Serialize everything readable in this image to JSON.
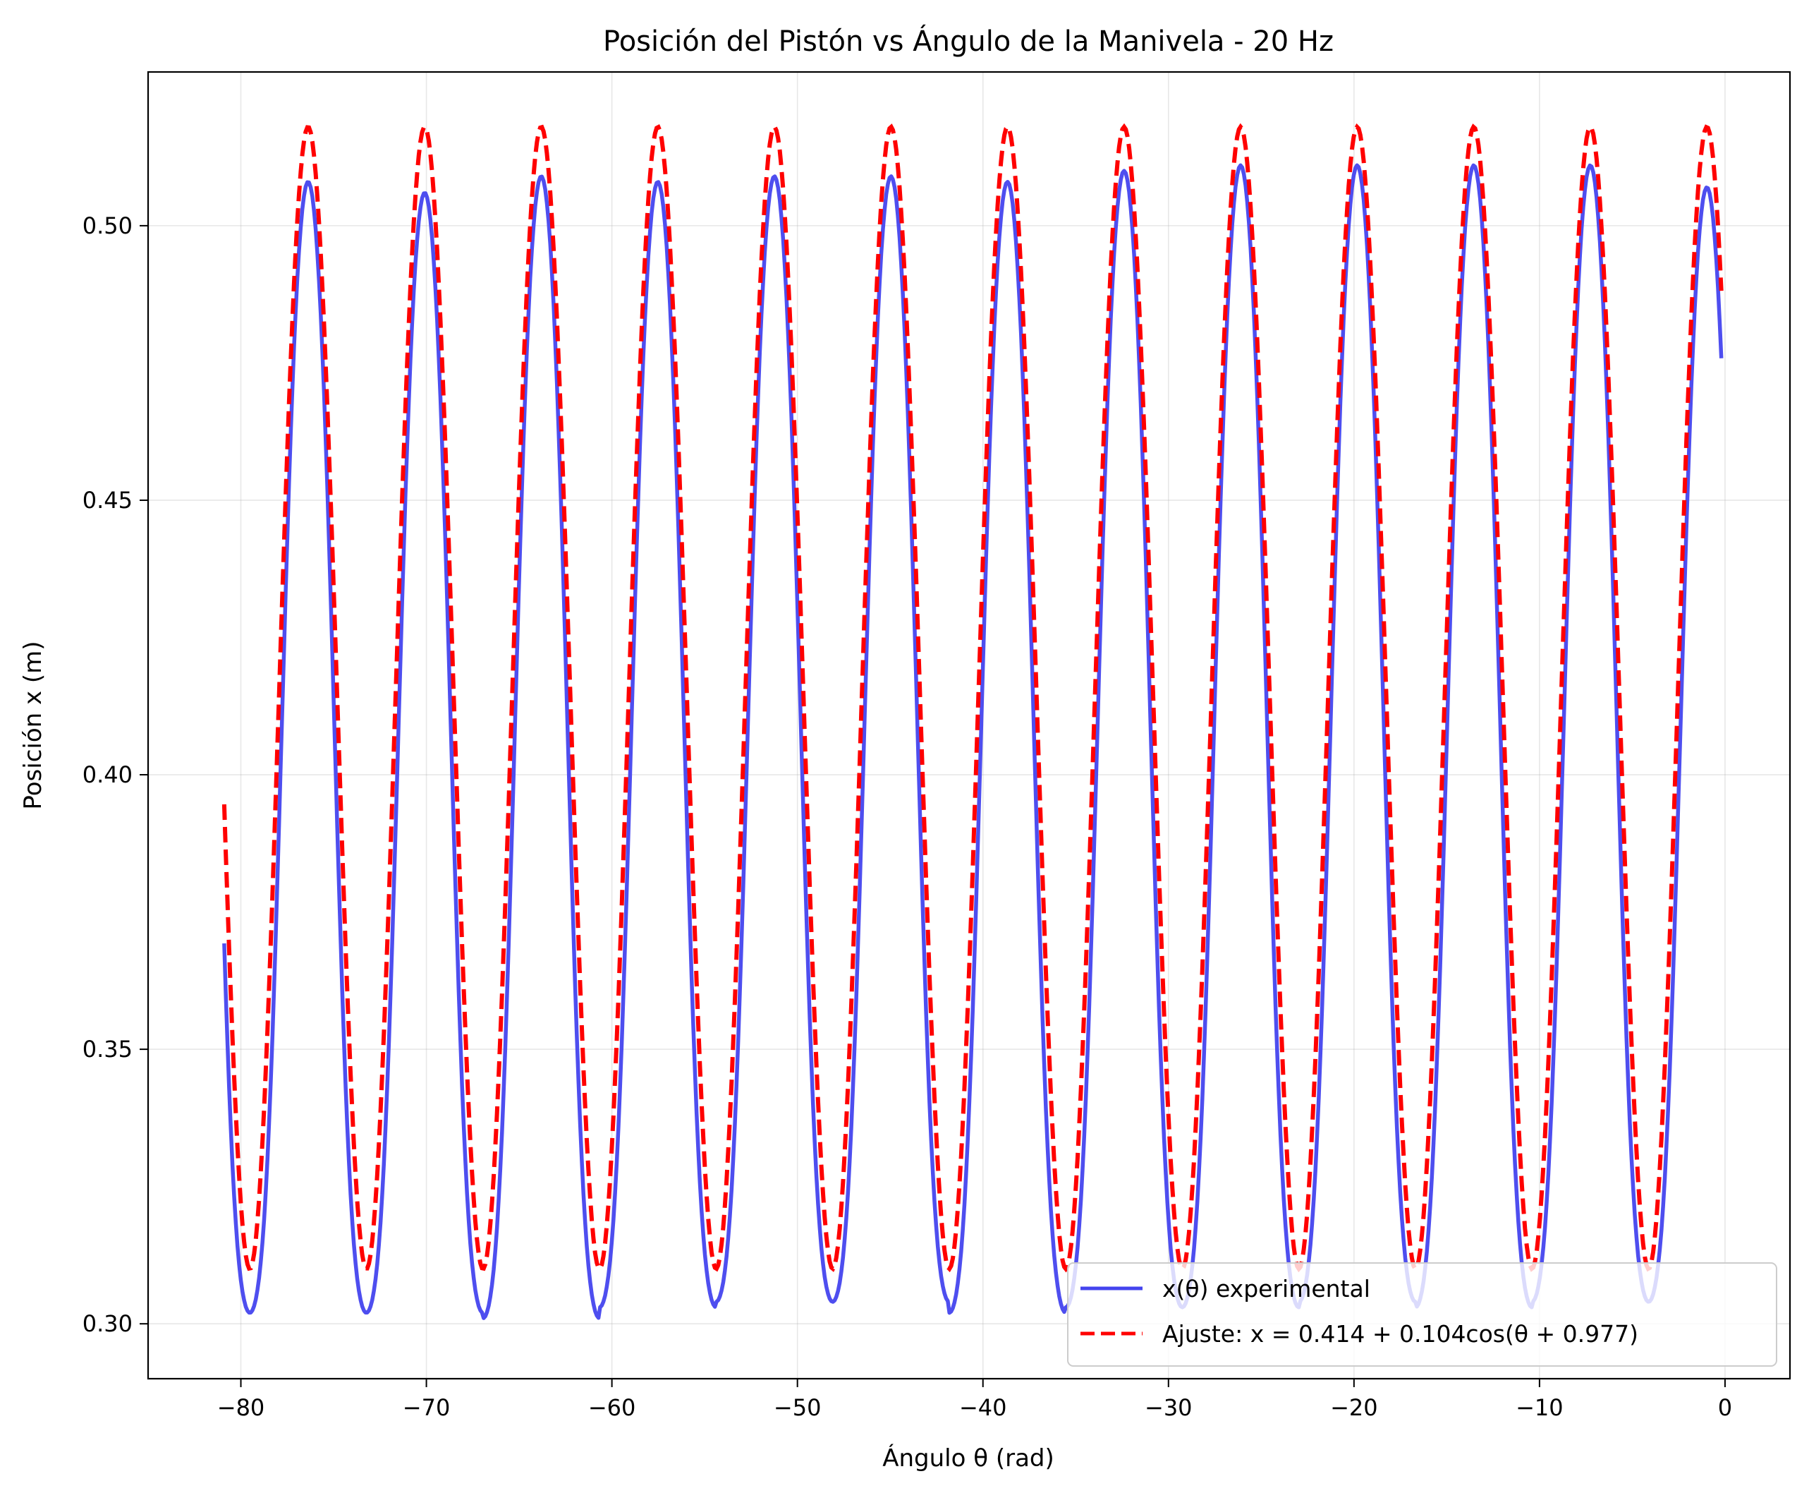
{
  "chart_data": {
    "type": "line",
    "title": "Posición del Pistón vs Ángulo de la Manivela - 20 Hz",
    "xlabel": "Ángulo θ (rad)",
    "ylabel": "Posición x (m)",
    "xlim": [
      -85,
      3.5
    ],
    "ylim": [
      0.29,
      0.528
    ],
    "xticks": [
      -80,
      -70,
      -60,
      -50,
      -40,
      -30,
      -20,
      -10,
      0
    ],
    "xtick_labels": [
      "−80",
      "−70",
      "−60",
      "−50",
      "−40",
      "−30",
      "−20",
      "−10",
      "0"
    ],
    "yticks": [
      0.3,
      0.35,
      0.4,
      0.45,
      0.5
    ],
    "ytick_labels": [
      "0.30",
      "0.35",
      "0.40",
      "0.45",
      "0.50"
    ],
    "grid": true,
    "legend_position": "bottom-right",
    "series": [
      {
        "name": "x(θ) experimental",
        "color": "#4444ee",
        "style": "solid",
        "model": {
          "offset": 0.4055,
          "amplitude": 0.1035,
          "phase": 0.977,
          "sharpness": 0.28
        },
        "x_range": [
          -80.9,
          -0.2
        ],
        "peaks_y": [
          0.508,
          0.506,
          0.509,
          0.508,
          0.509,
          0.509,
          0.508,
          0.51,
          0.511,
          0.511,
          0.511,
          0.511,
          0.507
        ],
        "troughs_y": [
          0.302,
          0.302,
          0.301,
          0.303,
          0.304,
          0.304,
          0.302,
          0.303,
          0.303,
          0.304,
          0.303,
          0.304,
          0.304
        ]
      },
      {
        "name": "Ajuste: x = 0.414 + 0.104cos(θ + 0.977)",
        "color": "#ff0000",
        "style": "dashed",
        "model": {
          "offset": 0.414,
          "amplitude": 0.104,
          "phase": 0.977
        },
        "x_range": [
          -80.9,
          -0.2
        ]
      }
    ]
  }
}
